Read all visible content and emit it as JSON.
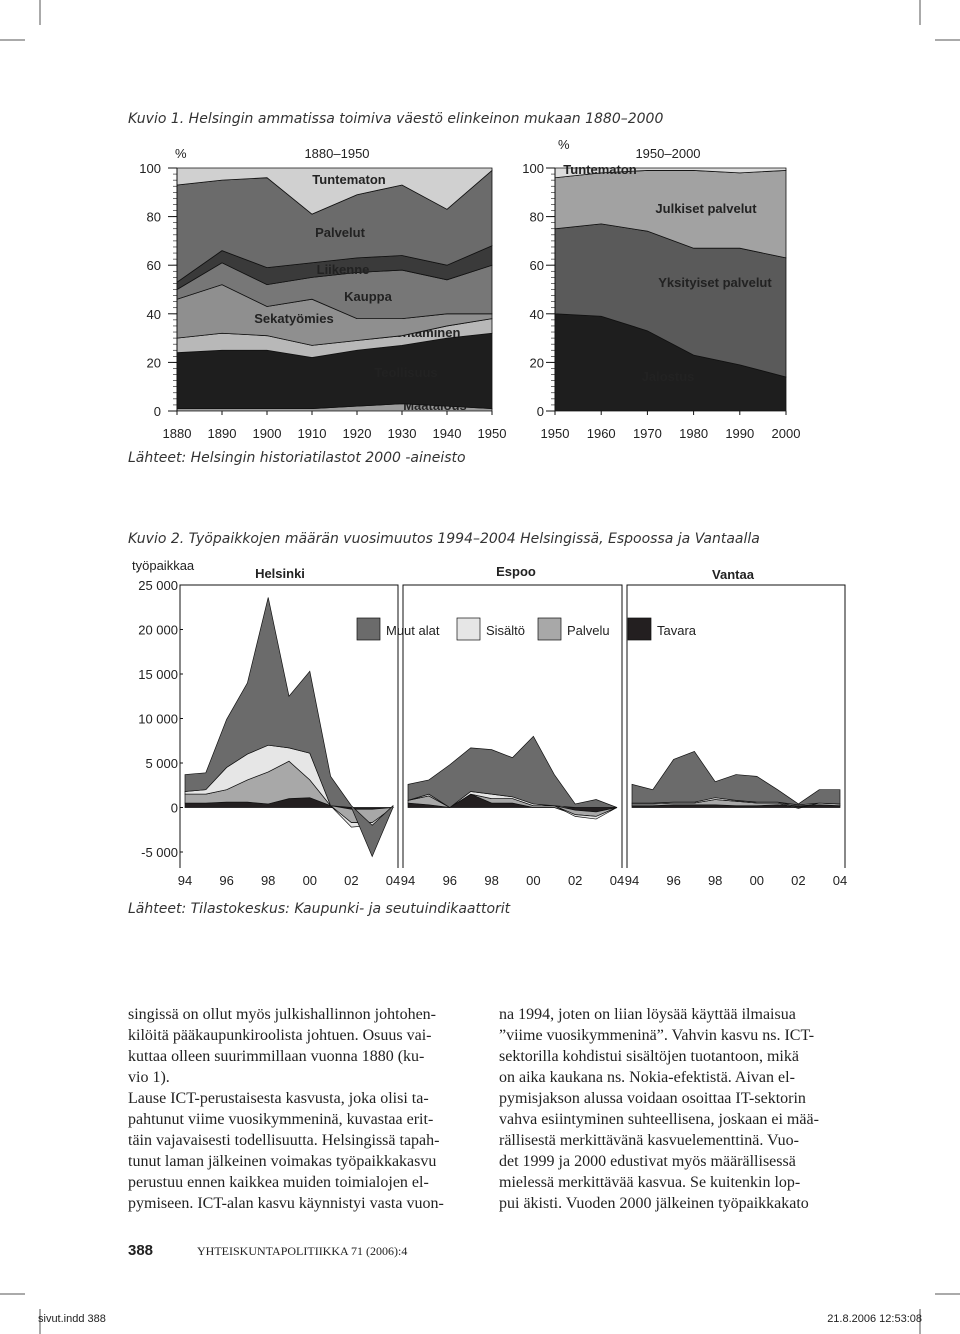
{
  "figure1": {
    "caption": "Kuvio 1. Helsingin ammatissa toimiva väestö elinkeinon mukaan 1880–2000",
    "source": "Lähteet: Helsingin historiatilastot 2000 -aineisto",
    "charts": [
      {
        "type": "area",
        "period": "1880–1950",
        "y_unit": "%",
        "x": [
          1880,
          1890,
          1900,
          1910,
          1920,
          1930,
          1940,
          1950
        ],
        "xlim": [
          1880,
          1950
        ],
        "xticks": [
          1880,
          1890,
          1900,
          1910,
          1920,
          1930,
          1940,
          1950
        ],
        "ylim": [
          0,
          100
        ],
        "yticks": [
          0,
          20,
          40,
          60,
          80,
          100
        ],
        "series": [
          {
            "name": "Maatalous",
            "color": "#9c9c9c",
            "values": [
              1,
              1,
              1,
              1,
              2,
              3,
              2,
              1
            ]
          },
          {
            "name": "Teollisuus",
            "color": "#1e1e1e",
            "values": [
              23,
              24,
              24,
              21,
              23,
              24,
              28,
              31
            ]
          },
          {
            "name": "Rakentaminen",
            "color": "#b8b8b8",
            "values": [
              6,
              7,
              6,
              5,
              4,
              4,
              5,
              6
            ]
          },
          {
            "name": "Sekatyömies",
            "color": "#8f8f8f",
            "values": [
              16,
              20,
              12,
              19,
              9,
              7,
              5,
              2
            ]
          },
          {
            "name": "Kauppa",
            "color": "#777777",
            "values": [
              4,
              9,
              9,
              9,
              19,
              20,
              14,
              20
            ]
          },
          {
            "name": "Liikenne",
            "color": "#3a3a3a",
            "values": [
              3,
              5,
              7,
              6,
              6,
              6,
              6,
              8
            ]
          },
          {
            "name": "Palvelut",
            "color": "#6b6b6b",
            "values": [
              40,
              29,
              37,
              20,
              26,
              29,
              23,
              31
            ]
          },
          {
            "name": "Tuntematon",
            "color": "#d0d0d0",
            "values": [
              7,
              5,
              4,
              19,
              11,
              7,
              17,
              1
            ]
          }
        ]
      },
      {
        "type": "area",
        "period": "1950–2000",
        "y_unit": "%",
        "x": [
          1950,
          1960,
          1970,
          1980,
          1990,
          2000
        ],
        "xlim": [
          1950,
          2000
        ],
        "xticks": [
          1950,
          1960,
          1970,
          1980,
          1990,
          2000
        ],
        "ylim": [
          0,
          100
        ],
        "yticks": [
          0,
          20,
          40,
          60,
          80,
          100
        ],
        "series": [
          {
            "name": "Jalostus",
            "color": "#1e1e1e",
            "values": [
              40,
              39,
              33,
              23,
              19,
              14
            ]
          },
          {
            "name": "Yksityiset palvelut",
            "color": "#5a5a5a",
            "values": [
              35,
              38,
              41,
              44,
              48,
              49
            ]
          },
          {
            "name": "Julkiset palvelut",
            "color": "#a2a2a2",
            "values": [
              21,
              21,
              25,
              32,
              31,
              36
            ]
          },
          {
            "name": "Tuntematon",
            "color": "#dcdcdc",
            "values": [
              4,
              2,
              1,
              1,
              2,
              1
            ]
          }
        ]
      }
    ]
  },
  "figure2": {
    "caption": "Kuvio 2. Työpaikkojen määrän vuosimuutos 1994–2004 Helsingissä, Espoossa ja Vantaalla",
    "source": "Lähteet: Tilastokeskus: Kaupunki- ja seutuindikaattorit",
    "y_label": "työpaikkaa",
    "ylim": [
      -5000,
      25000
    ],
    "yticks": [
      {
        "value": 25000,
        "label": "25 000"
      },
      {
        "value": 20000,
        "label": "20 000"
      },
      {
        "value": 15000,
        "label": "15 000"
      },
      {
        "value": 10000,
        "label": "10 000"
      },
      {
        "value": 5000,
        "label": "5 000"
      },
      0,
      {
        "value": -5000,
        "label": "-5 000"
      }
    ],
    "legend_order": [
      3,
      2,
      1,
      0
    ],
    "charts": [
      {
        "type": "area",
        "title": "Helsinki",
        "categories": [
          "94",
          null,
          "96",
          null,
          "98",
          null,
          "00",
          null,
          "02",
          null,
          "04"
        ],
        "series": [
          {
            "name": "Tavara",
            "color": "#231f20",
            "values": [
              500,
              500,
              600,
              600,
              400,
              1000,
              1100,
              200,
              -200,
              -200,
              0
            ]
          },
          {
            "name": "Palvelu",
            "color": "#a8a8a8",
            "values": [
              1000,
              1000,
              1400,
              2500,
              3600,
              4200,
              2000,
              0,
              -1500,
              -1500,
              0
            ]
          },
          {
            "name": "Sisältö",
            "color": "#e6e6e6",
            "values": [
              300,
              500,
              2500,
              2900,
              3000,
              1500,
              3000,
              0,
              -500,
              -300,
              0
            ]
          },
          {
            "name": "Muut alat",
            "color": "#6b6b6b",
            "values": [
              1900,
              1900,
              5400,
              8000,
              16600,
              5800,
              9200,
              3300,
              200,
              -3500,
              200
            ]
          }
        ]
      },
      {
        "type": "area",
        "title": "Espoo",
        "categories": [
          "94",
          null,
          "96",
          null,
          "98",
          null,
          "00",
          null,
          "02",
          null,
          "04"
        ],
        "series": [
          {
            "name": "Tavara",
            "color": "#231f20",
            "values": [
              500,
              300,
              0,
              1500,
              500,
              500,
              0,
              0,
              -300,
              -500,
              0
            ]
          },
          {
            "name": "Palvelu",
            "color": "#a8a8a8",
            "values": [
              300,
              1000,
              0,
              0,
              500,
              500,
              200,
              200,
              -500,
              -500,
              0
            ]
          },
          {
            "name": "Sisältö",
            "color": "#e6e6e6",
            "values": [
              0,
              200,
              0,
              300,
              500,
              200,
              200,
              0,
              -200,
              -300,
              0
            ]
          },
          {
            "name": "Muut alat",
            "color": "#6b6b6b",
            "values": [
              1800,
              1600,
              4800,
              4900,
              5000,
              4400,
              7600,
              3500,
              400,
              900,
              0
            ]
          }
        ]
      },
      {
        "type": "area",
        "title": "Vantaa",
        "categories": [
          "94",
          null,
          "96",
          null,
          "98",
          null,
          "00",
          null,
          "02",
          null,
          "04"
        ],
        "series": [
          {
            "name": "Tavara",
            "color": "#231f20",
            "values": [
              200,
              200,
              300,
              300,
              300,
              200,
              200,
              300,
              200,
              300,
              200
            ]
          },
          {
            "name": "Palvelu",
            "color": "#a8a8a8",
            "values": [
              200,
              200,
              200,
              200,
              600,
              500,
              300,
              200,
              100,
              200,
              200
            ]
          },
          {
            "name": "Sisältö",
            "color": "#e6e6e6",
            "values": [
              100,
              100,
              100,
              100,
              200,
              100,
              100,
              100,
              -100,
              0,
              0
            ]
          },
          {
            "name": "Muut alat",
            "color": "#6b6b6b",
            "values": [
              2100,
              1500,
              4800,
              5700,
              1800,
              2900,
              2900,
              1400,
              100,
              1500,
              1600
            ]
          }
        ]
      }
    ]
  },
  "body": {
    "left": [
      [
        "singissä on ollut myös julkishallinnon johtohen-",
        "kilöitä pääkaupunkiroolista johtuen. Osuus vai-",
        "kuttaa olleen suurimmillaan vuonna 1880 (ku-",
        "vio 1)."
      ],
      [
        "Lause ICT-perustaisesta kasvusta, joka olisi ta-",
        "pahtunut viime vuosikymmeninä, kuvastaa erit-",
        "täin vajavaisesti todellisuutta. Helsingissä tapah-",
        "tunut laman jälkeinen voimakas työpaikkakasvu",
        "perustuu ennen kaikkea muiden toimialojen el-",
        "pymiseen. ICT-alan kasvu käynnistyi vasta vuon-"
      ]
    ],
    "right": [
      [
        "na 1994, joten on liian löysää käyttää ilmaisua",
        "”viime vuosikymmeninä”. Vahvin kasvu ns. ICT-",
        "sektorilla kohdistui sisältöjen tuotantoon, mikä",
        "on aika kaukana ns. Nokia-efektistä. Aivan el-",
        "pymisjakson alussa voidaan osoittaa IT-sektorin",
        "vahva esiintyminen suhteellisena, joskaan ei mää-",
        "rällisestä merkittävänä kasvuelementtinä. Vuo-",
        "det 1999 ja 2000 edustivat myös määrällisessä",
        "mielessä merkittävää kasvua. Se kuitenkin lop-",
        "pui äkisti. Vuoden 2000 jälkeinen työpaikkakato"
      ]
    ]
  },
  "footer": {
    "page": "388",
    "journal": "YHTEISKUNTAPOLITIIKKA 71 (2006):4"
  },
  "slug": {
    "file": "sivut.indd   388",
    "date": "21.8.2006   12:53:08"
  }
}
